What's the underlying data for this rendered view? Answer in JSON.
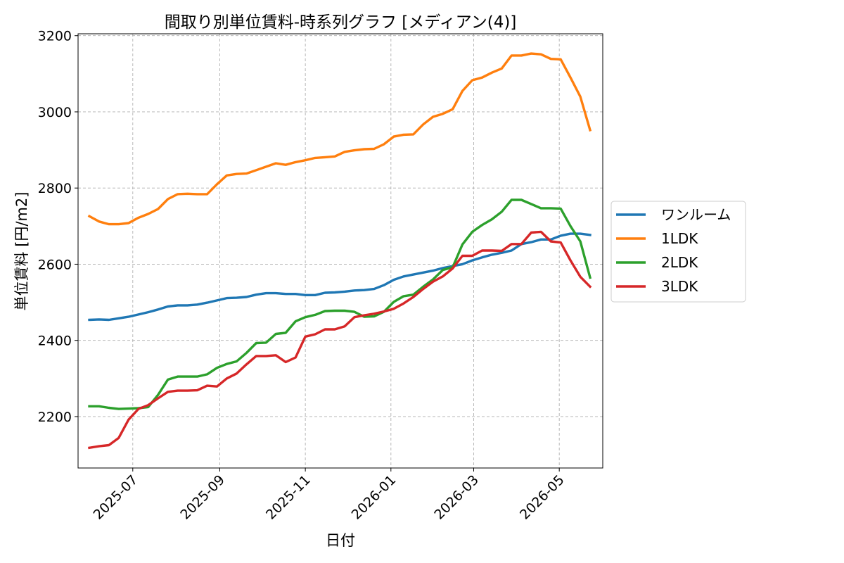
{
  "chart_data": {
    "type": "line",
    "title": "間取り別単位賃料-時系列グラフ [メディアン(4)]",
    "xlabel": "日付",
    "ylabel": "単位賃料 [円/m2]",
    "xlim": [
      "2025-05-23",
      "2026-06-01"
    ],
    "ylim": [
      2065,
      3205
    ],
    "yticks": [
      2200,
      2400,
      2600,
      2800,
      3000,
      3200
    ],
    "xticks": [
      "2025-07-01",
      "2025-09-01",
      "2025-11-01",
      "2026-01-01",
      "2026-03-01",
      "2026-05-01"
    ],
    "xtick_labels": [
      "2025-07",
      "2025-09",
      "2025-11",
      "2026-01",
      "2026-03",
      "2026-05"
    ],
    "grid": true,
    "legend_position": "outside-right",
    "x": [
      "2025-05-31",
      "2025-06-07",
      "2025-06-14",
      "2025-06-21",
      "2025-06-28",
      "2025-07-05",
      "2025-07-12",
      "2025-07-19",
      "2025-07-26",
      "2025-08-02",
      "2025-08-09",
      "2025-08-16",
      "2025-08-23",
      "2025-08-30",
      "2025-09-06",
      "2025-09-13",
      "2025-09-20",
      "2025-09-27",
      "2025-10-04",
      "2025-10-11",
      "2025-10-18",
      "2025-10-25",
      "2025-11-01",
      "2025-11-08",
      "2025-11-15",
      "2025-11-22",
      "2025-11-29",
      "2025-12-06",
      "2025-12-13",
      "2025-12-20",
      "2025-12-27",
      "2026-01-03",
      "2026-01-10",
      "2026-01-17",
      "2026-01-24",
      "2026-01-31",
      "2026-02-07",
      "2026-02-14",
      "2026-02-21",
      "2026-02-28",
      "2026-03-07",
      "2026-03-14",
      "2026-03-21",
      "2026-03-28",
      "2026-04-04",
      "2026-04-11",
      "2026-04-18",
      "2026-04-25",
      "2026-05-02",
      "2026-05-09",
      "2026-05-16",
      "2026-05-23"
    ],
    "series": [
      {
        "name": "ワンルーム",
        "color": "#1f77b4",
        "values": [
          2454,
          2455,
          2454,
          2458,
          2462,
          2468,
          2474,
          2481,
          2489,
          2492,
          2492,
          2494,
          2499,
          2505,
          2511,
          2512,
          2514,
          2520,
          2524,
          2524,
          2522,
          2522,
          2519,
          2519,
          2525,
          2526,
          2528,
          2531,
          2532,
          2535,
          2545,
          2559,
          2568,
          2573,
          2578,
          2583,
          2590,
          2595,
          2600,
          2610,
          2618,
          2625,
          2630,
          2636,
          2653,
          2658,
          2665,
          2665,
          2675,
          2680,
          2680,
          2677
        ]
      },
      {
        "name": "1LDK",
        "color": "#ff7f0e",
        "values": [
          2726,
          2712,
          2705,
          2705,
          2708,
          2722,
          2732,
          2745,
          2771,
          2784,
          2785,
          2784,
          2784,
          2810,
          2833,
          2837,
          2838,
          2847,
          2856,
          2865,
          2861,
          2868,
          2873,
          2879,
          2881,
          2883,
          2895,
          2899,
          2902,
          2903,
          2915,
          2935,
          2940,
          2941,
          2967,
          2987,
          2995,
          3007,
          3055,
          3083,
          3090,
          3103,
          3114,
          3148,
          3148,
          3153,
          3151,
          3139,
          3138,
          3090,
          3040,
          2952
        ]
      },
      {
        "name": "2LDK",
        "color": "#2ca02c",
        "values": [
          2227,
          2227,
          2223,
          2220,
          2221,
          2222,
          2225,
          2257,
          2297,
          2305,
          2305,
          2305,
          2311,
          2328,
          2338,
          2345,
          2367,
          2393,
          2394,
          2417,
          2420,
          2450,
          2461,
          2467,
          2477,
          2478,
          2478,
          2475,
          2462,
          2463,
          2475,
          2501,
          2516,
          2520,
          2541,
          2560,
          2585,
          2592,
          2652,
          2685,
          2703,
          2718,
          2738,
          2769,
          2769,
          2758,
          2747,
          2747,
          2746,
          2700,
          2660,
          2565
        ]
      },
      {
        "name": "3LDK",
        "color": "#d62728",
        "values": [
          2118,
          2122,
          2125,
          2144,
          2192,
          2220,
          2230,
          2248,
          2265,
          2268,
          2268,
          2269,
          2281,
          2279,
          2300,
          2313,
          2337,
          2359,
          2359,
          2361,
          2343,
          2355,
          2410,
          2416,
          2429,
          2429,
          2437,
          2461,
          2466,
          2470,
          2476,
          2483,
          2497,
          2514,
          2535,
          2554,
          2568,
          2589,
          2622,
          2622,
          2636,
          2636,
          2635,
          2653,
          2653,
          2683,
          2685,
          2660,
          2657,
          2610,
          2567,
          2541
        ]
      }
    ]
  }
}
